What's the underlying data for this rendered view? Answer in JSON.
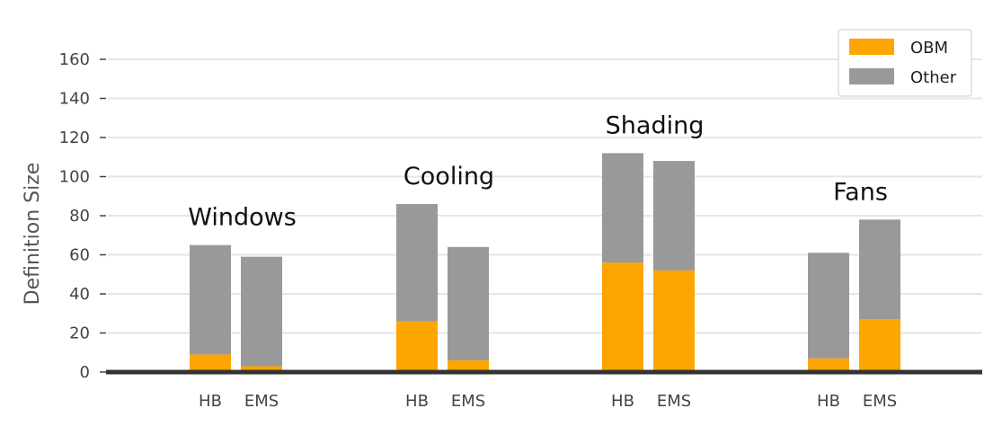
{
  "chart_data": {
    "type": "bar",
    "stacked": true,
    "ylabel": "Definition Size",
    "xlabel": "",
    "ylim": [
      0,
      160
    ],
    "yticks": [
      0,
      20,
      40,
      60,
      80,
      100,
      120,
      140,
      160
    ],
    "grid": true,
    "legend_position": "top-right",
    "series": [
      {
        "name": "OBM",
        "color": "#FFA500"
      },
      {
        "name": "Other",
        "color": "#999999"
      }
    ],
    "groups": [
      {
        "label": "Windows",
        "bars": [
          {
            "label": "HB",
            "OBM": 9,
            "Other": 56
          },
          {
            "label": "EMS",
            "OBM": 3,
            "Other": 56
          }
        ]
      },
      {
        "label": "Cooling",
        "bars": [
          {
            "label": "HB",
            "OBM": 26,
            "Other": 60
          },
          {
            "label": "EMS",
            "OBM": 6,
            "Other": 58
          }
        ]
      },
      {
        "label": "Shading",
        "bars": [
          {
            "label": "HB",
            "OBM": 56,
            "Other": 56
          },
          {
            "label": "EMS",
            "OBM": 52,
            "Other": 56
          }
        ]
      },
      {
        "label": "Fans",
        "bars": [
          {
            "label": "HB",
            "OBM": 7,
            "Other": 54
          },
          {
            "label": "EMS",
            "OBM": 27,
            "Other": 51
          }
        ]
      }
    ]
  }
}
